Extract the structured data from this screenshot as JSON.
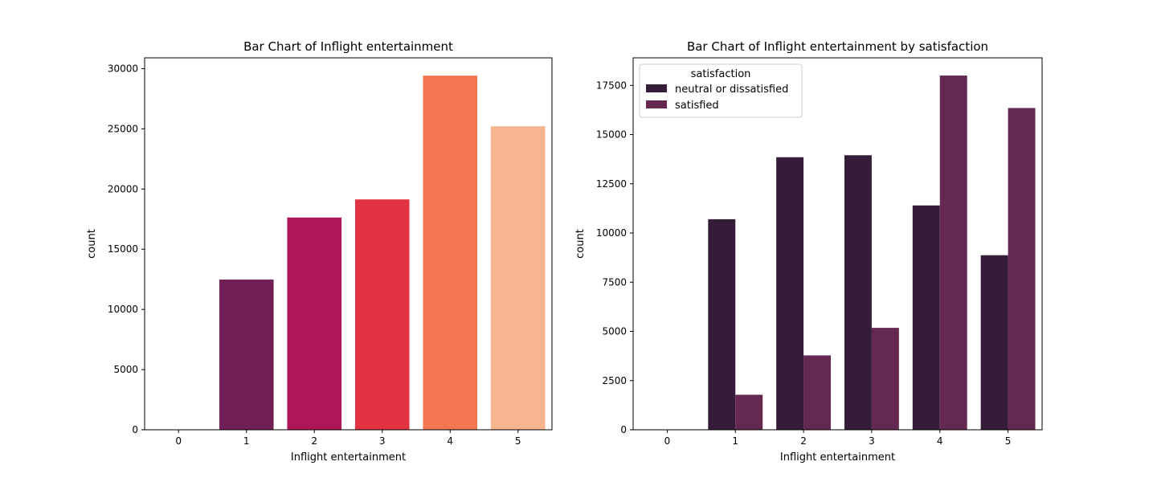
{
  "chart_data": [
    {
      "type": "bar",
      "title": "Bar Chart of Inflight entertainment",
      "xlabel": "Inflight entertainment",
      "ylabel": "count",
      "categories": [
        "0",
        "1",
        "2",
        "3",
        "4",
        "5"
      ],
      "values": [
        14,
        12478,
        17637,
        19139,
        29423,
        25213
      ],
      "colors": [
        "#35193e",
        "#701f57",
        "#ad1759",
        "#e13342",
        "#f37651",
        "#f6b48f"
      ],
      "ylim": [
        0,
        30900
      ],
      "yticks": [
        0,
        5000,
        10000,
        15000,
        20000,
        25000,
        30000
      ],
      "grid": false
    },
    {
      "type": "bar",
      "title": "Bar Chart of Inflight entertainment by satisfaction",
      "xlabel": "Inflight entertainment",
      "ylabel": "count",
      "categories": [
        "0",
        "1",
        "2",
        "3",
        "4",
        "5"
      ],
      "series": [
        {
          "name": "neutral or dissatisfied",
          "color": "#351c38",
          "values": [
            14,
            10700,
            13850,
            13950,
            11400,
            8870
          ]
        },
        {
          "name": "satisfied",
          "color": "#652851",
          "values": [
            0,
            1780,
            3780,
            5180,
            18000,
            16350
          ]
        }
      ],
      "ylim": [
        0,
        18900
      ],
      "yticks": [
        0,
        2500,
        5000,
        7500,
        10000,
        12500,
        15000,
        17500
      ],
      "legend": {
        "title": "satisfaction",
        "placement": "top-left"
      },
      "grid": false
    }
  ]
}
